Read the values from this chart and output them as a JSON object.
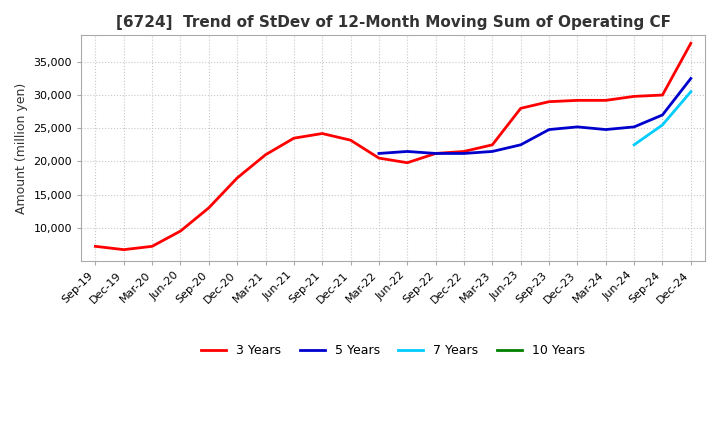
{
  "title": "[6724]  Trend of StDev of 12-Month Moving Sum of Operating CF",
  "ylabel": "Amount (million yen)",
  "background_color": "#ffffff",
  "grid_color": "#c8c8c8",
  "legend": [
    "3 Years",
    "5 Years",
    "7 Years",
    "10 Years"
  ],
  "legend_colors": [
    "#ff0000",
    "#0000cd",
    "#00ccff",
    "#008000"
  ],
  "ylim": [
    5000,
    39000
  ],
  "yticks": [
    10000,
    15000,
    20000,
    25000,
    30000,
    35000
  ],
  "x_labels": [
    "Sep-19",
    "Dec-19",
    "Mar-20",
    "Jun-20",
    "Sep-20",
    "Dec-20",
    "Mar-21",
    "Jun-21",
    "Sep-21",
    "Dec-21",
    "Mar-22",
    "Jun-22",
    "Sep-22",
    "Dec-22",
    "Mar-23",
    "Jun-23",
    "Sep-23",
    "Dec-23",
    "Mar-24",
    "Jun-24",
    "Sep-24",
    "Dec-24"
  ],
  "series_3y": [
    7200,
    6700,
    7200,
    9500,
    13000,
    17500,
    21000,
    23500,
    24200,
    23200,
    20500,
    19800,
    21200,
    21500,
    22500,
    28000,
    29000,
    29200,
    29200,
    29800,
    30000,
    37800
  ],
  "series_5y": [
    null,
    null,
    null,
    null,
    null,
    null,
    null,
    null,
    null,
    null,
    21200,
    21500,
    21200,
    21200,
    21500,
    22500,
    24800,
    25200,
    24800,
    25200,
    27000,
    32500
  ],
  "series_7y": [
    null,
    null,
    null,
    null,
    null,
    null,
    null,
    null,
    null,
    null,
    null,
    null,
    null,
    null,
    null,
    null,
    null,
    null,
    null,
    22500,
    25500,
    30500
  ],
  "series_10y": [
    null,
    null,
    null,
    null,
    null,
    null,
    null,
    null,
    null,
    null,
    null,
    null,
    null,
    null,
    null,
    null,
    null,
    null,
    null,
    null,
    null,
    null
  ]
}
